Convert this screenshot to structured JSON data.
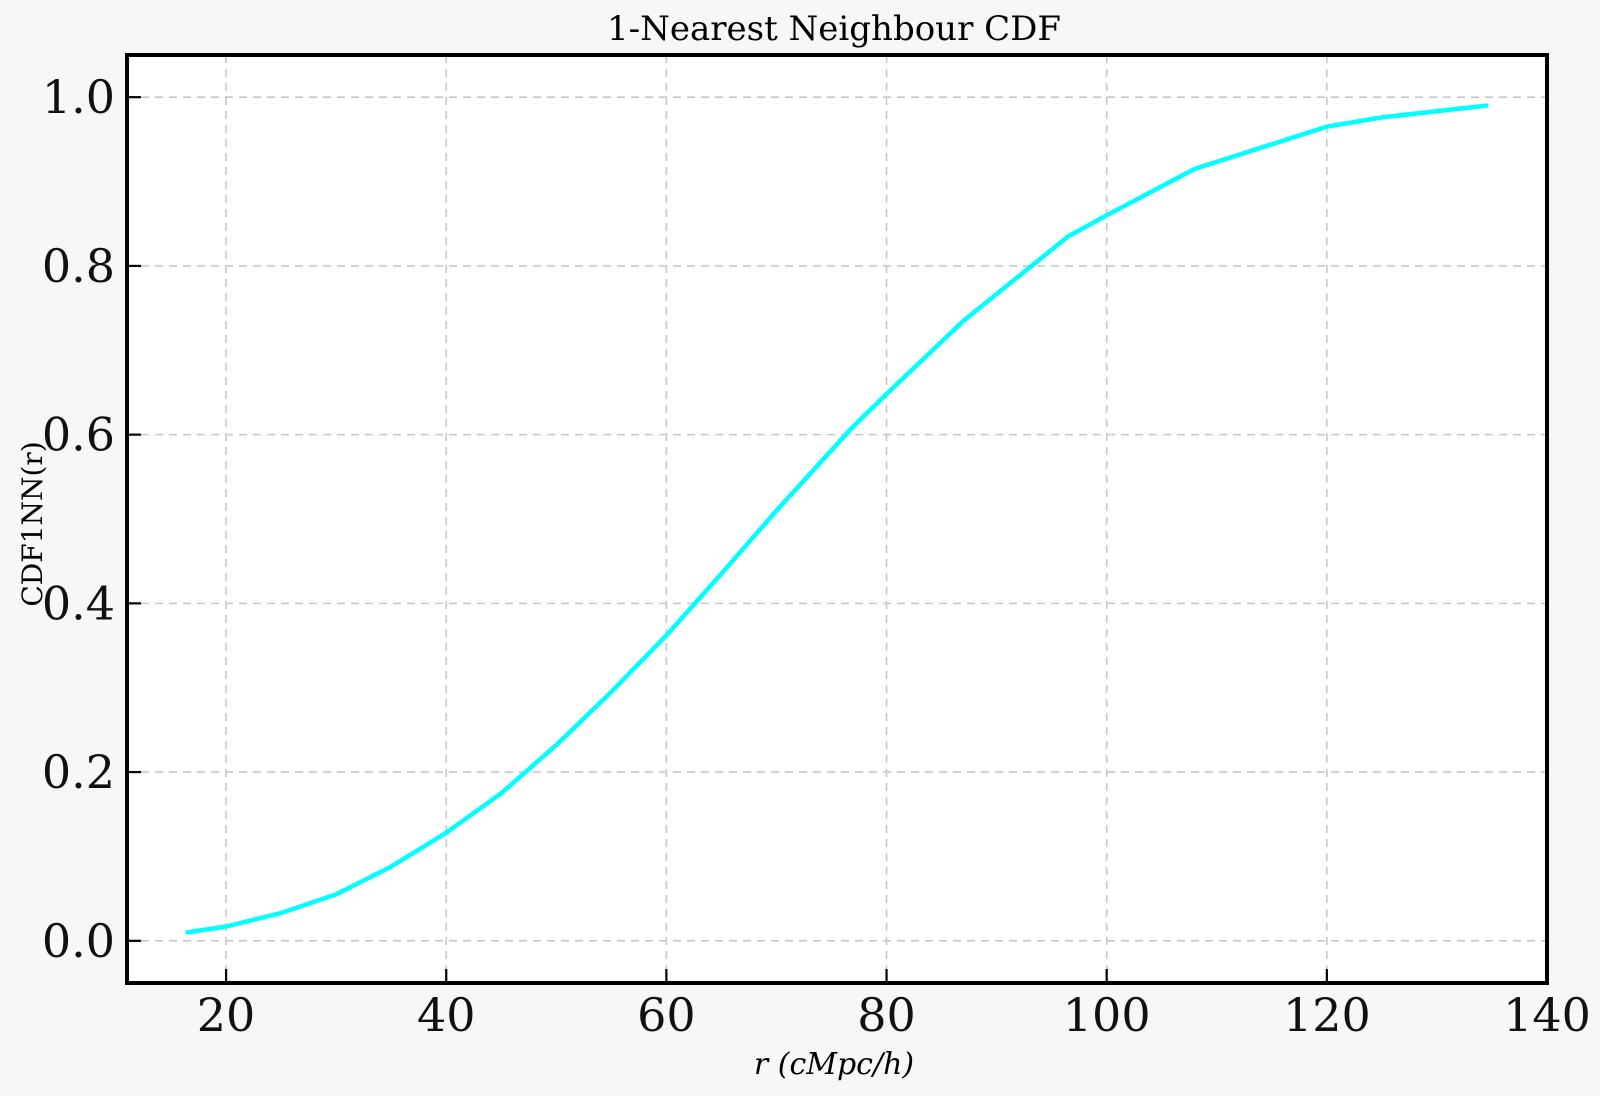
{
  "chart_data": {
    "type": "line",
    "title": "1-Nearest Neighbour CDF",
    "xlabel": "r (cMpc/h)",
    "ylabel": "CDF1NN(r)",
    "xlim": [
      11,
      140
    ],
    "ylim": [
      -0.05,
      1.05
    ],
    "xticks": [
      20,
      40,
      60,
      80,
      100,
      120,
      140
    ],
    "yticks": [
      0.0,
      0.2,
      0.4,
      0.6,
      0.8,
      1.0
    ],
    "xtick_labels": [
      "20",
      "40",
      "60",
      "80",
      "100",
      "120",
      "140"
    ],
    "ytick_labels": [
      "0.0",
      "0.2",
      "0.4",
      "0.6",
      "0.8",
      "1.0"
    ],
    "grid": true,
    "series": [
      {
        "color": "#00ffff",
        "x": [
          16.5,
          20,
          25,
          30,
          35,
          40,
          45,
          50,
          55,
          60,
          65,
          70,
          77,
          80,
          87,
          96.5,
          100,
          108,
          114,
          120,
          125,
          134.5
        ],
        "y": [
          0.01,
          0.017,
          0.033,
          0.055,
          0.088,
          0.128,
          0.175,
          0.232,
          0.295,
          0.362,
          0.435,
          0.51,
          0.61,
          0.648,
          0.735,
          0.835,
          0.86,
          0.915,
          0.94,
          0.965,
          0.976,
          0.99
        ]
      }
    ]
  }
}
